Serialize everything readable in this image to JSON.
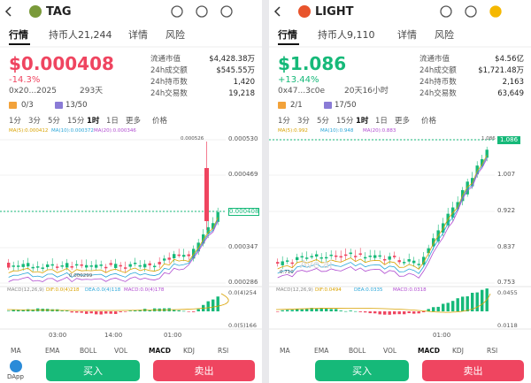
{
  "panels": [
    {
      "name": "TAG",
      "tabs": [
        "行情",
        "持币人21,244",
        "详情",
        "风险"
      ],
      "price": "$0.000408",
      "change": "-14.3%",
      "trend": "down",
      "address": "0x20...2025",
      "age": "293天",
      "stats": [
        [
          "流通市值",
          "$4,428.38万"
        ],
        [
          "24h成交额",
          "$545.55万"
        ],
        [
          "24h持币数",
          "1,420"
        ],
        [
          "24h交易数",
          "19,218"
        ]
      ],
      "badges": [
        "0/3",
        "13/50"
      ],
      "timeframes": [
        "1分",
        "3分",
        "5分",
        "15分",
        "1时",
        "1日",
        "更多",
        "价格"
      ],
      "ma": [
        "MA(5):0.000412",
        "MA(10):0.000372",
        "MA(20):0.000346"
      ],
      "yaxis": [
        "0.000530",
        "0.000469",
        "0.000408",
        "0.000347",
        "0.000286"
      ],
      "high": "0.000526",
      "low": "0.000299",
      "macd": [
        "MACD(12,26,9)",
        "DIF:0.0(4)218",
        "DEA:0.0(4)118",
        "MACD:0.0(4)178"
      ],
      "macd_axis": [
        "0.0(4)254",
        "0.0(5)166"
      ],
      "xaxis": [
        "03:00",
        "14:00",
        "01:00"
      ],
      "indicators": [
        "MA",
        "EMA",
        "BOLL",
        "VOL",
        "MACD",
        "KDJ",
        "RSI"
      ],
      "buy": "买入",
      "sell": "卖出",
      "dapp": "DApp"
    },
    {
      "name": "LIGHT",
      "tabs": [
        "行情",
        "持币人9,110",
        "详情",
        "风险"
      ],
      "price": "$1.086",
      "change": "+13.44%",
      "trend": "up",
      "address": "0x47...3c0e",
      "age": "20天16小时",
      "stats": [
        [
          "流通市值",
          "$4.56亿"
        ],
        [
          "24h成交额",
          "$1,721.48万"
        ],
        [
          "24h持币数",
          "2,163"
        ],
        [
          "24h交易数",
          "63,649"
        ]
      ],
      "badges": [
        "2/1",
        "17/50"
      ],
      "timeframes": [
        "1分",
        "3分",
        "5分",
        "15分",
        "1时",
        "1日",
        "更多",
        "价格"
      ],
      "ma": [
        "MA(5):0.992",
        "MA(10):0.948",
        "MA(20):0.883"
      ],
      "yaxis": [
        "1.086",
        "1.007",
        "0.922",
        "0.837",
        "0.753"
      ],
      "high": "1.086",
      "low": "0.710",
      "macd": [
        "MACD(12,26,9)",
        "DIF:0.0494",
        "DEA:0.0335",
        "MACD:0.0318"
      ],
      "macd_axis": [
        "0.0455",
        "0.0118"
      ],
      "xaxis": [
        "01:00"
      ],
      "indicators": [
        "MA",
        "EMA",
        "BOLL",
        "VOL",
        "MACD",
        "KDJ",
        "RSI"
      ],
      "buy": "买入",
      "sell": "卖出",
      "watermark": "Ave.ai"
    }
  ]
}
